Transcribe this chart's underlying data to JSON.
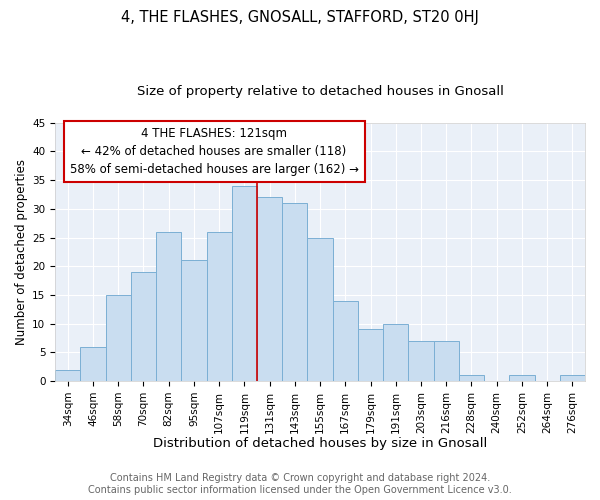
{
  "title": "4, THE FLASHES, GNOSALL, STAFFORD, ST20 0HJ",
  "subtitle": "Size of property relative to detached houses in Gnosall",
  "xlabel": "Distribution of detached houses by size in Gnosall",
  "ylabel": "Number of detached properties",
  "bar_labels": [
    "34sqm",
    "46sqm",
    "58sqm",
    "70sqm",
    "82sqm",
    "95sqm",
    "107sqm",
    "119sqm",
    "131sqm",
    "143sqm",
    "155sqm",
    "167sqm",
    "179sqm",
    "191sqm",
    "203sqm",
    "216sqm",
    "228sqm",
    "240sqm",
    "252sqm",
    "264sqm",
    "276sqm"
  ],
  "bar_values": [
    2,
    6,
    15,
    19,
    26,
    21,
    26,
    34,
    32,
    31,
    25,
    14,
    9,
    10,
    7,
    7,
    1,
    0,
    1,
    0,
    1
  ],
  "bar_color": "#c9ddf0",
  "bar_edge_color": "#7bafd4",
  "ylim": [
    0,
    45
  ],
  "yticks": [
    0,
    5,
    10,
    15,
    20,
    25,
    30,
    35,
    40,
    45
  ],
  "vline_index": 7,
  "vline_color": "#cc0000",
  "annotation_title": "4 THE FLASHES: 121sqm",
  "annotation_line1": "← 42% of detached houses are smaller (118)",
  "annotation_line2": "58% of semi-detached houses are larger (162) →",
  "annotation_box_facecolor": "#ffffff",
  "annotation_box_edgecolor": "#cc0000",
  "footer_line1": "Contains HM Land Registry data © Crown copyright and database right 2024.",
  "footer_line2": "Contains public sector information licensed under the Open Government Licence v3.0.",
  "fig_facecolor": "#ffffff",
  "axes_facecolor": "#eaf0f8",
  "grid_color": "#ffffff",
  "title_fontsize": 10.5,
  "subtitle_fontsize": 9.5,
  "xlabel_fontsize": 9.5,
  "ylabel_fontsize": 8.5,
  "tick_fontsize": 7.5,
  "annotation_fontsize": 8.5,
  "footer_fontsize": 7
}
